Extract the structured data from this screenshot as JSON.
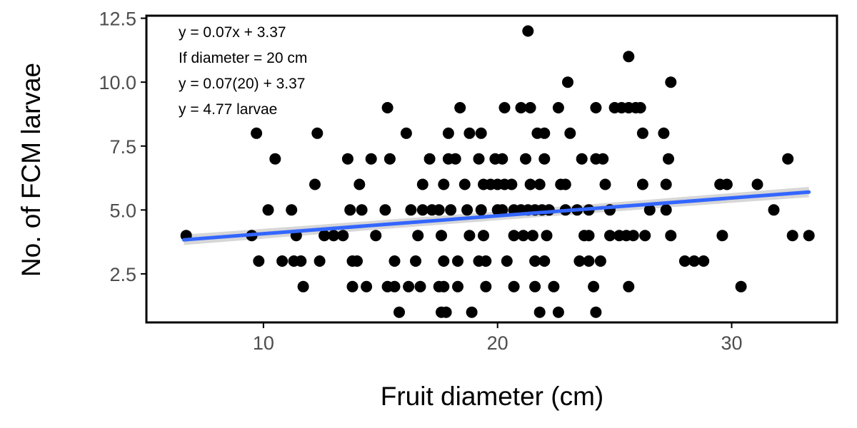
{
  "chart_data": {
    "type": "scatter",
    "xlabel": "Fruit diameter (cm)",
    "ylabel": "No. of FCM larvae",
    "xlim": [
      5.0,
      34.5
    ],
    "ylim": [
      0.6,
      12.6
    ],
    "x_ticks": [
      10,
      20,
      30
    ],
    "x_tick_labels": [
      "10",
      "20",
      "30"
    ],
    "y_ticks": [
      2.5,
      5.0,
      7.5,
      10.0,
      12.5
    ],
    "y_tick_labels": [
      "2.5",
      "5.0",
      "7.5",
      "10.0",
      "12.5"
    ],
    "grid": false,
    "annotations": [
      "y = 0.07x + 3.37",
      "If diameter = 20 cm",
      "y = 0.07(20) + 3.37",
      "y = 4.77 larvae"
    ],
    "trend_line": {
      "method": "linear",
      "slope": 0.07,
      "intercept": 3.37,
      "x_range": [
        6.6,
        33.3
      ],
      "se_band": true
    },
    "colors": {
      "points": "#000000",
      "trend_line": "#3366ff",
      "confidence_band": "#d3d3d3",
      "axis": "#000000"
    },
    "points": [
      [
        21.3,
        12
      ],
      [
        25.6,
        11
      ],
      [
        23.0,
        10
      ],
      [
        27.4,
        10
      ],
      [
        15.3,
        9
      ],
      [
        18.4,
        9
      ],
      [
        20.3,
        9
      ],
      [
        21.0,
        9
      ],
      [
        21.4,
        9
      ],
      [
        22.6,
        9
      ],
      [
        24.2,
        9
      ],
      [
        25.0,
        9
      ],
      [
        25.3,
        9
      ],
      [
        25.6,
        9
      ],
      [
        25.9,
        9
      ],
      [
        26.1,
        9
      ],
      [
        9.7,
        8
      ],
      [
        12.3,
        8
      ],
      [
        16.1,
        8
      ],
      [
        17.9,
        8
      ],
      [
        18.8,
        8
      ],
      [
        19.3,
        8
      ],
      [
        21.7,
        8
      ],
      [
        22.0,
        8
      ],
      [
        23.1,
        8
      ],
      [
        26.2,
        8
      ],
      [
        27.1,
        8
      ],
      [
        10.5,
        7
      ],
      [
        13.6,
        7
      ],
      [
        14.6,
        7
      ],
      [
        15.4,
        7
      ],
      [
        17.1,
        7
      ],
      [
        17.9,
        7
      ],
      [
        18.2,
        7
      ],
      [
        19.2,
        7
      ],
      [
        19.9,
        7
      ],
      [
        20.2,
        7
      ],
      [
        21.2,
        7
      ],
      [
        22.0,
        7
      ],
      [
        23.6,
        7
      ],
      [
        24.2,
        7
      ],
      [
        24.5,
        7
      ],
      [
        27.3,
        7
      ],
      [
        32.4,
        7
      ],
      [
        12.2,
        6
      ],
      [
        14.1,
        6
      ],
      [
        16.8,
        6
      ],
      [
        17.7,
        6
      ],
      [
        18.6,
        6
      ],
      [
        19.4,
        6
      ],
      [
        19.7,
        6
      ],
      [
        20.0,
        6
      ],
      [
        20.3,
        6
      ],
      [
        20.6,
        6
      ],
      [
        21.4,
        6
      ],
      [
        21.8,
        6
      ],
      [
        22.7,
        6
      ],
      [
        22.9,
        6
      ],
      [
        24.6,
        6
      ],
      [
        26.2,
        6
      ],
      [
        27.2,
        6
      ],
      [
        29.5,
        6
      ],
      [
        29.8,
        6
      ],
      [
        31.1,
        6
      ],
      [
        10.2,
        5
      ],
      [
        11.2,
        5
      ],
      [
        13.7,
        5
      ],
      [
        14.2,
        5
      ],
      [
        15.2,
        5
      ],
      [
        16.3,
        5
      ],
      [
        16.8,
        5
      ],
      [
        17.2,
        5
      ],
      [
        17.5,
        5
      ],
      [
        18.0,
        5
      ],
      [
        18.7,
        5
      ],
      [
        19.3,
        5
      ],
      [
        20.0,
        5
      ],
      [
        20.2,
        5
      ],
      [
        20.7,
        5
      ],
      [
        21.0,
        5
      ],
      [
        21.3,
        5
      ],
      [
        21.6,
        5
      ],
      [
        21.9,
        5
      ],
      [
        22.2,
        5
      ],
      [
        22.9,
        5
      ],
      [
        23.4,
        5
      ],
      [
        23.9,
        5
      ],
      [
        24.8,
        5
      ],
      [
        26.5,
        5
      ],
      [
        27.2,
        5
      ],
      [
        31.8,
        5
      ],
      [
        6.7,
        4
      ],
      [
        9.5,
        4
      ],
      [
        11.4,
        4
      ],
      [
        12.6,
        4
      ],
      [
        13.0,
        4
      ],
      [
        13.4,
        4
      ],
      [
        14.8,
        4
      ],
      [
        16.6,
        4
      ],
      [
        17.6,
        4
      ],
      [
        18.8,
        4
      ],
      [
        19.4,
        4
      ],
      [
        20.7,
        4
      ],
      [
        21.1,
        4
      ],
      [
        21.5,
        4
      ],
      [
        22.1,
        4
      ],
      [
        23.7,
        4
      ],
      [
        23.9,
        4
      ],
      [
        24.8,
        4
      ],
      [
        25.2,
        4
      ],
      [
        25.5,
        4
      ],
      [
        25.8,
        4
      ],
      [
        26.3,
        4
      ],
      [
        27.4,
        4
      ],
      [
        29.6,
        4
      ],
      [
        32.6,
        4
      ],
      [
        33.3,
        4
      ],
      [
        9.8,
        3
      ],
      [
        10.8,
        3
      ],
      [
        11.3,
        3
      ],
      [
        11.6,
        3
      ],
      [
        12.4,
        3
      ],
      [
        13.8,
        3
      ],
      [
        14.0,
        3
      ],
      [
        15.6,
        3
      ],
      [
        16.5,
        3
      ],
      [
        17.7,
        3
      ],
      [
        18.3,
        3
      ],
      [
        19.2,
        3
      ],
      [
        19.5,
        3
      ],
      [
        20.4,
        3
      ],
      [
        21.6,
        3
      ],
      [
        22.0,
        3
      ],
      [
        23.5,
        3
      ],
      [
        23.9,
        3
      ],
      [
        24.4,
        3
      ],
      [
        28.0,
        3
      ],
      [
        28.4,
        3
      ],
      [
        28.8,
        3
      ],
      [
        11.7,
        2
      ],
      [
        13.8,
        2
      ],
      [
        14.4,
        2
      ],
      [
        15.3,
        2
      ],
      [
        15.6,
        2
      ],
      [
        16.2,
        2
      ],
      [
        16.7,
        2
      ],
      [
        17.5,
        2
      ],
      [
        17.7,
        2
      ],
      [
        18.3,
        2
      ],
      [
        19.5,
        2
      ],
      [
        20.7,
        2
      ],
      [
        21.6,
        2
      ],
      [
        22.4,
        2
      ],
      [
        24.1,
        2
      ],
      [
        25.6,
        2
      ],
      [
        30.4,
        2
      ],
      [
        15.8,
        1
      ],
      [
        17.6,
        1
      ],
      [
        17.8,
        1
      ],
      [
        18.9,
        1
      ],
      [
        21.8,
        1
      ],
      [
        22.6,
        1
      ],
      [
        24.2,
        1
      ]
    ]
  }
}
